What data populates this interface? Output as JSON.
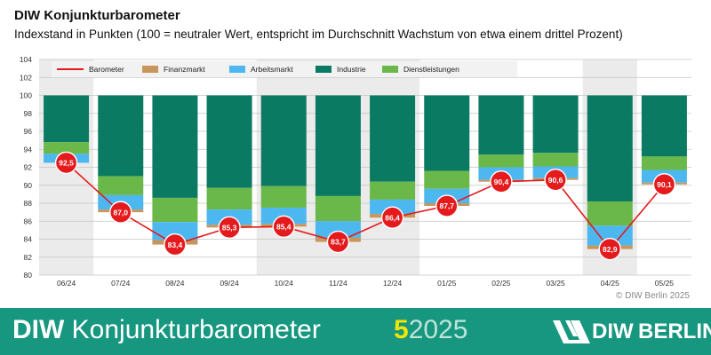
{
  "header": {
    "title": "DIW Konjunkturbarometer",
    "subtitle": "Indexstand in Punkten (100 = neutraler Wert, entspricht im Durchschnitt Wachstum von etwa einem drittel Prozent)"
  },
  "copyright": "© DIW Berlin 2025",
  "footer": {
    "brand_bold": "DIW",
    "brand_rest": "Konjunkturbarometer",
    "issue_number": "5",
    "issue_year": "2025",
    "logo_word": "DIW",
    "logo_sub": "BERLIN",
    "background_color": "#17977f"
  },
  "chart_data": {
    "type": "bar",
    "categories": [
      "06/24",
      "07/24",
      "08/24",
      "09/24",
      "10/24",
      "11/24",
      "12/24",
      "01/25",
      "02/25",
      "03/25",
      "04/25",
      "05/25"
    ],
    "ylim": [
      80,
      104
    ],
    "yticks": [
      80,
      82,
      84,
      86,
      88,
      90,
      92,
      94,
      96,
      98,
      100,
      102,
      104
    ],
    "baseline": 100,
    "legend": [
      {
        "name": "Barometer",
        "color": "#e41a1c",
        "kind": "line"
      },
      {
        "name": "Finanzmarkt",
        "color": "#c8965a",
        "kind": "box"
      },
      {
        "name": "Arbeitsmarkt",
        "color": "#4db8f0",
        "kind": "box"
      },
      {
        "name": "Industrie",
        "color": "#0b7a63",
        "kind": "box"
      },
      {
        "name": "Dienstleistungen",
        "color": "#6ab84a",
        "kind": "box"
      }
    ],
    "shaded_bands": [
      [
        0,
        0
      ],
      [
        4,
        6
      ],
      [
        10,
        10
      ]
    ],
    "stacks": [
      {
        "industrie": 100.0,
        "dienst": 94.8,
        "arbeit": 93.5,
        "finanz": 92.5
      },
      {
        "industrie": 100.0,
        "dienst": 91.0,
        "arbeit": 88.9,
        "finanz": 87.3
      },
      {
        "industrie": 100.0,
        "dienst": 88.6,
        "arbeit": 85.9,
        "finanz": 83.9
      },
      {
        "industrie": 100.0,
        "dienst": 89.7,
        "arbeit": 87.3,
        "finanz": 85.6
      },
      {
        "industrie": 100.0,
        "dienst": 89.9,
        "arbeit": 87.5,
        "finanz": 85.7
      },
      {
        "industrie": 100.0,
        "dienst": 88.8,
        "arbeit": 86.0,
        "finanz": 84.2
      },
      {
        "industrie": 100.0,
        "dienst": 90.4,
        "arbeit": 88.4,
        "finanz": 86.8
      },
      {
        "industrie": 100.0,
        "dienst": 91.6,
        "arbeit": 89.6,
        "finanz": 88.0
      },
      {
        "industrie": 100.0,
        "dienst": 93.4,
        "arbeit": 92.0,
        "finanz": 90.6
      },
      {
        "industrie": 100.0,
        "dienst": 93.6,
        "arbeit": 92.1,
        "finanz": 90.8
      },
      {
        "industrie": 100.0,
        "dienst": 88.2,
        "arbeit": 85.5,
        "finanz": 83.3
      },
      {
        "industrie": 100.0,
        "dienst": 93.2,
        "arbeit": 91.7,
        "finanz": 90.3
      }
    ],
    "barometer": [
      92.5,
      87.0,
      83.4,
      85.3,
      85.4,
      83.7,
      86.4,
      87.7,
      90.4,
      90.6,
      82.9,
      90.1
    ],
    "barometer_labels": [
      "92,5",
      "87,0",
      "83,4",
      "85,3",
      "85,4",
      "83,7",
      "86,4",
      "87,7",
      "90,4",
      "90,6",
      "82,9",
      "90,1"
    ],
    "grid": true
  }
}
